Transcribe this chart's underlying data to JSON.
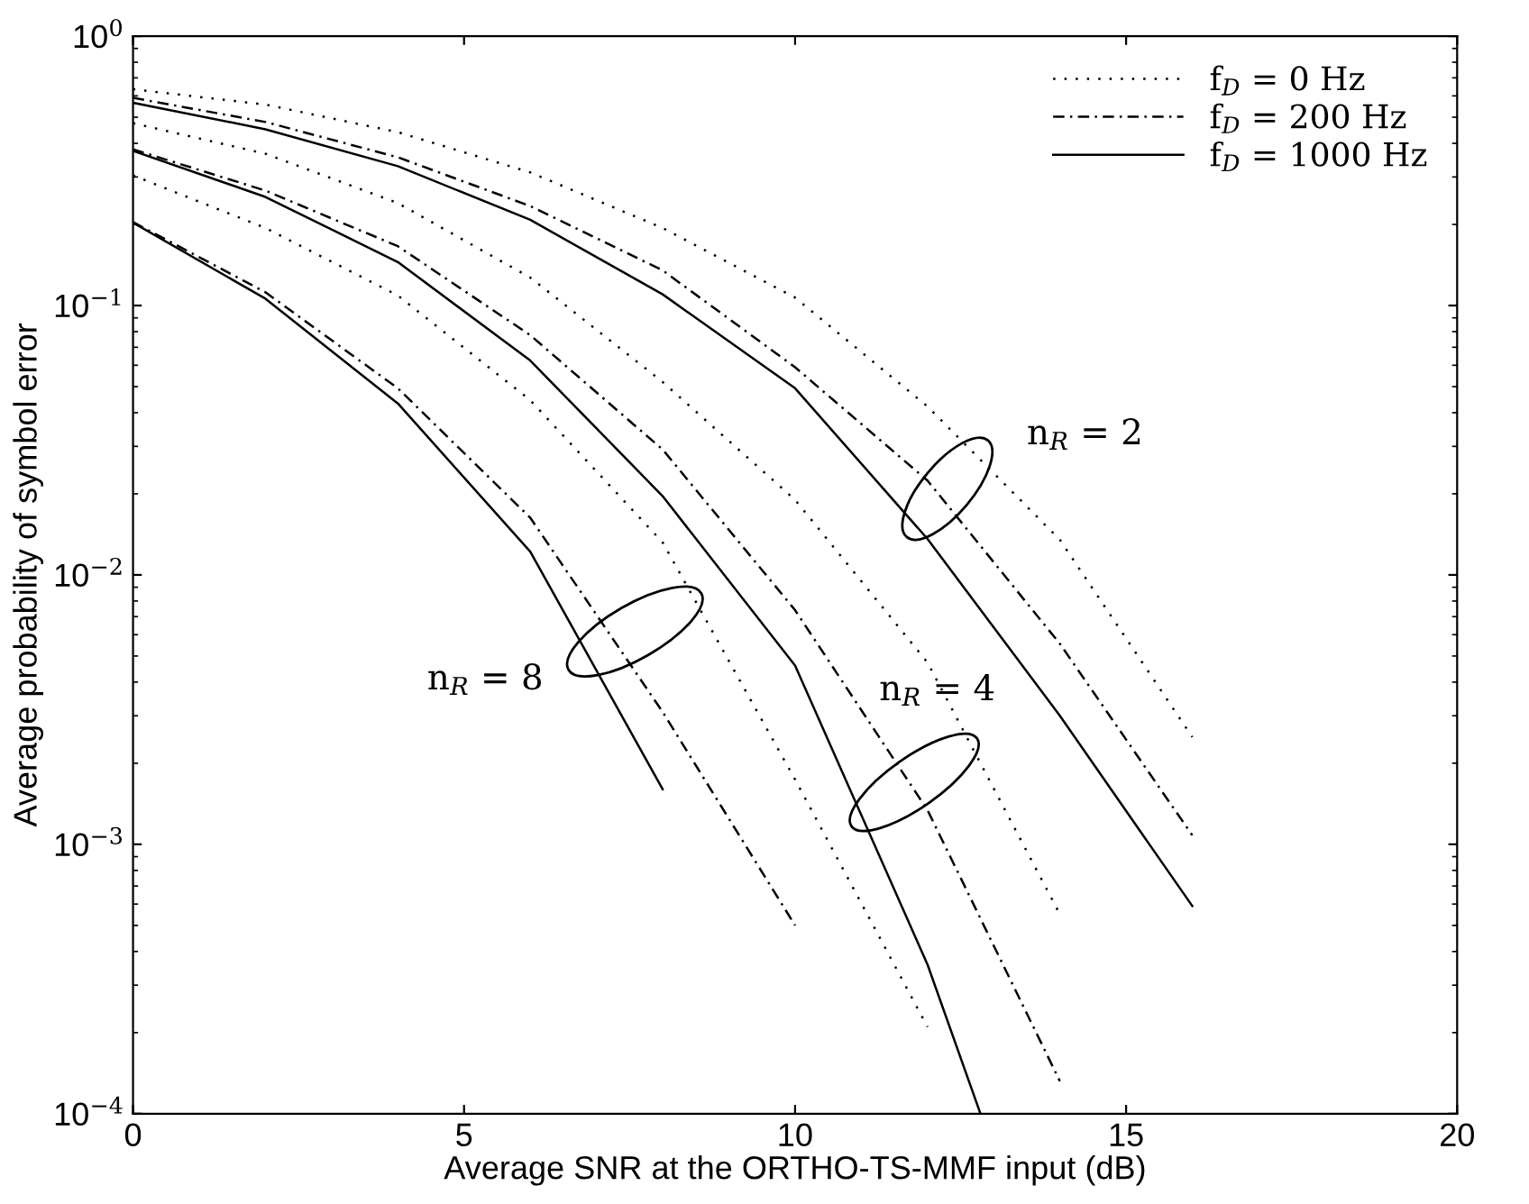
{
  "chart_data": {
    "type": "line",
    "xlabel": "Average SNR at the ORTHO-TS-MMF input (dB)",
    "ylabel": "Average probability of symbol error",
    "log": "y",
    "xlim": [
      0,
      20
    ],
    "xticks": [
      0,
      5,
      10,
      15,
      20
    ],
    "ylim": [
      0.0001,
      1
    ],
    "yticks": [
      {
        "value": 1,
        "label": "10$^{0}$"
      },
      {
        "value": 0.1,
        "label": "10$^{−1}$"
      },
      {
        "value": 0.01,
        "label": "10$^{−2}$"
      },
      {
        "value": 0.001,
        "label": "10$^{−3}$"
      },
      {
        "value": 0.0001,
        "label": "10$^{−4}$"
      }
    ],
    "grid": false,
    "legend": "top right",
    "marker": "none",
    "series": [
      {
        "name": "f$_{D}$ = 0 Hz",
        "color": "#000000",
        "line_style": "dotted",
        "x": [
          0,
          2,
          4,
          6,
          8,
          10,
          12,
          14,
          16
        ],
        "values": [
          0.635,
          0.557,
          0.44,
          0.312,
          0.194,
          0.107,
          0.0422,
          0.0135,
          0.0025
        ]
      },
      {
        "name": "f$_{D}$ = 200 Hz",
        "color": "#000000",
        "line_style": "dashdot",
        "x": [
          0,
          2,
          4,
          6,
          8,
          10,
          12,
          14,
          16
        ],
        "values": [
          0.59,
          0.48,
          0.355,
          0.234,
          0.135,
          0.059,
          0.0224,
          0.00555,
          0.00108
        ]
      },
      {
        "name": "f$_{D}$ = 1000 Hz",
        "color": "#000000",
        "line_style": "solid",
        "x": [
          0,
          2,
          4,
          6,
          8,
          10,
          12,
          14,
          16
        ],
        "values": [
          0.566,
          0.451,
          0.329,
          0.208,
          0.11,
          0.0493,
          0.0136,
          0.003,
          0.00059
        ]
      },
      {
        "color": "#000000",
        "line_style": "dotted",
        "x": [
          0,
          2,
          4,
          6,
          8,
          10,
          12,
          14
        ],
        "values": [
          0.475,
          0.366,
          0.24,
          0.127,
          0.052,
          0.019,
          0.00473,
          0.00055
        ]
      },
      {
        "color": "#000000",
        "line_style": "dashdot",
        "x": [
          0,
          2,
          4,
          6,
          8,
          10,
          12,
          14
        ],
        "values": [
          0.38,
          0.267,
          0.166,
          0.0776,
          0.0292,
          0.0074,
          0.00134,
          0.000132
        ]
      },
      {
        "color": "#000000",
        "line_style": "solid",
        "x": [
          0,
          2,
          4,
          6,
          8,
          10,
          12,
          12.8
        ],
        "values": [
          0.375,
          0.253,
          0.145,
          0.0625,
          0.0196,
          0.00461,
          0.000358,
          0.0001
        ]
      },
      {
        "color": "#000000",
        "line_style": "dotted",
        "x": [
          0,
          2,
          4,
          6,
          8,
          10,
          12
        ],
        "values": [
          0.304,
          0.194,
          0.109,
          0.0445,
          0.0132,
          0.00174,
          0.00021
        ]
      },
      {
        "color": "#000000",
        "line_style": "dashdot",
        "x": [
          0,
          2,
          4,
          6,
          8,
          10
        ],
        "values": [
          0.204,
          0.112,
          0.0493,
          0.0163,
          0.0031,
          0.0005
        ]
      },
      {
        "color": "#000000",
        "line_style": "solid",
        "x": [
          0,
          2,
          4,
          6,
          8
        ],
        "values": [
          0.203,
          0.106,
          0.0433,
          0.0122,
          0.0016
        ]
      }
    ],
    "annotations": [
      "n$_{R}$ = 2",
      "n$_{R}$ = 4",
      "n$_{R}$ = 8"
    ]
  }
}
